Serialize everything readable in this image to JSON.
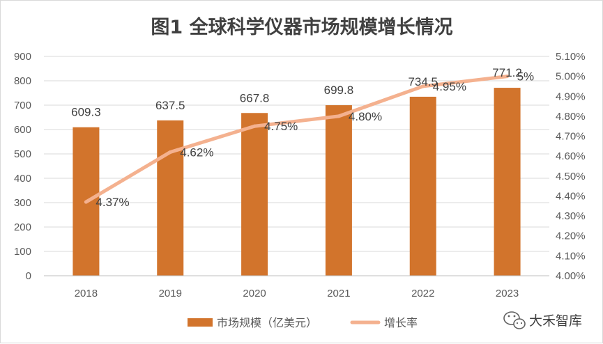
{
  "chart_data": {
    "type": "bar",
    "title": "图1 全球科学仪器市场规模增长情况",
    "categories": [
      "2018",
      "2019",
      "2020",
      "2021",
      "2022",
      "2023"
    ],
    "series": [
      {
        "name": "市场规模（亿美元）",
        "type": "bar",
        "axis": "left",
        "color": "#d2742c",
        "values": [
          609.3,
          637.5,
          667.8,
          699.8,
          734.5,
          771.2
        ],
        "labels": [
          "609.3",
          "637.5",
          "667.8",
          "699.8",
          "734.5",
          "771.2"
        ]
      },
      {
        "name": "增长率",
        "type": "line",
        "axis": "right",
        "color": "#f4b18f",
        "values": [
          4.37,
          4.62,
          4.75,
          4.8,
          4.95,
          5.0
        ],
        "labels": [
          "4.37%",
          "4.62%",
          "4.75%",
          "4.80%",
          "4.95%",
          "5%"
        ]
      }
    ],
    "y_left": {
      "ylim": [
        0,
        900
      ],
      "ticks": [
        "0",
        "100",
        "200",
        "300",
        "400",
        "500",
        "600",
        "700",
        "800",
        "900"
      ]
    },
    "y_right": {
      "ylim": [
        4.0,
        5.1
      ],
      "ticks": [
        "4.00%",
        "4.10%",
        "4.20%",
        "4.30%",
        "4.40%",
        "4.50%",
        "4.60%",
        "4.70%",
        "4.80%",
        "4.90%",
        "5.00%",
        "5.10%"
      ]
    },
    "grid": true,
    "legend": "bottom"
  },
  "watermark": {
    "text": "大禾智库",
    "icon": "wechat-icon"
  }
}
